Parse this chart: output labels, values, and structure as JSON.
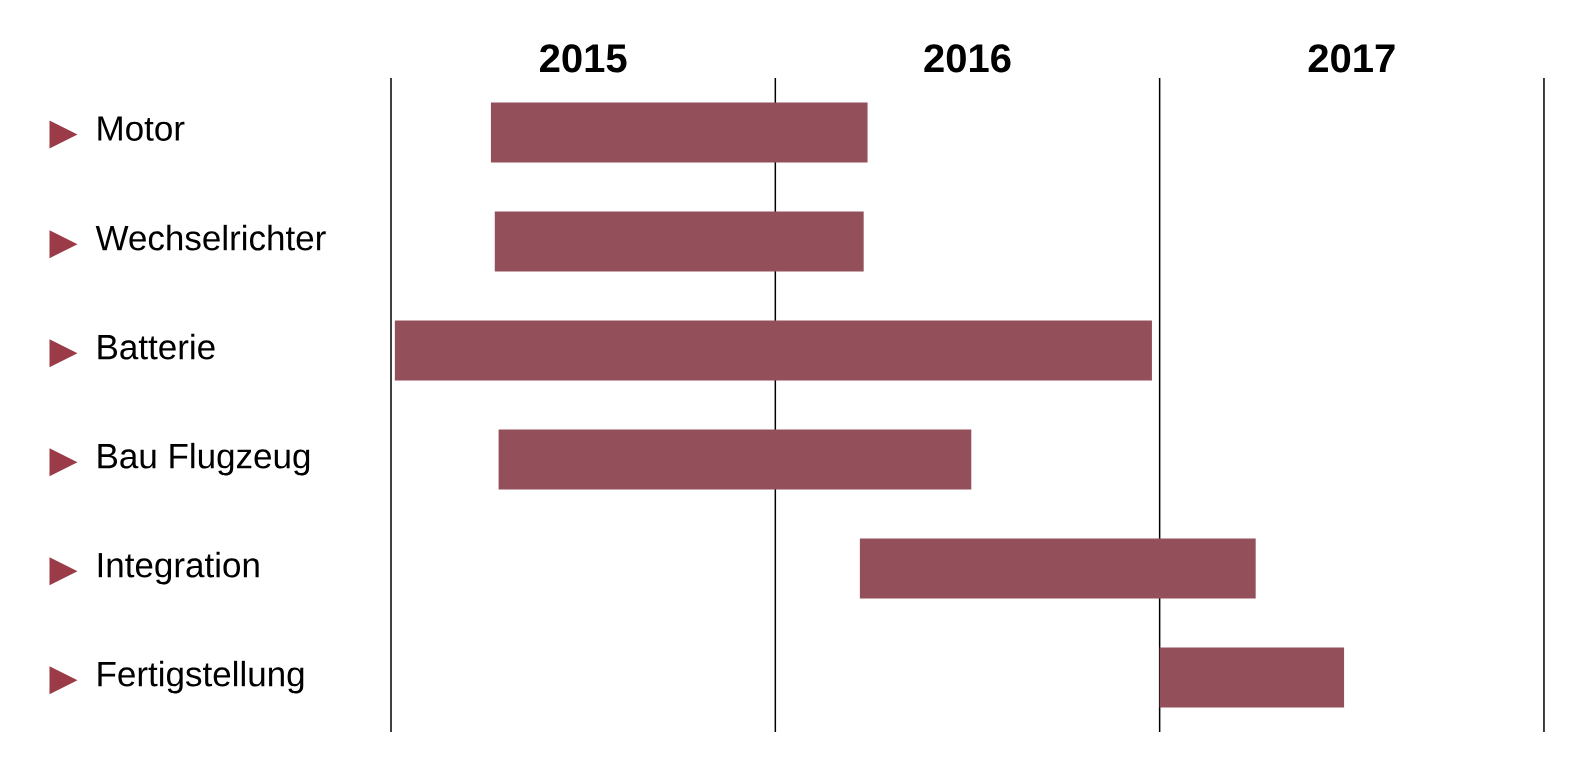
{
  "chart_data": {
    "type": "bar",
    "orientation": "horizontal",
    "categories": [
      "Motor",
      "Wechselrichter",
      "Batterie",
      "Bau Flugzeug",
      "Integration",
      "Fertigstellung"
    ],
    "base": [
      2015.26,
      2015.27,
      2015.01,
      2015.28,
      2016.22,
      2017.0
    ],
    "values": [
      0.98,
      0.96,
      1.97,
      1.23,
      1.03,
      0.48
    ],
    "color": "#93505a",
    "xlim": [
      2015,
      2018
    ],
    "xticks": [
      {
        "value": 2015.5,
        "label": "2015"
      },
      {
        "value": 2016.5,
        "label": "2016"
      },
      {
        "value": 2017.5,
        "label": "2017"
      }
    ],
    "ref_lines": [
      {
        "axis": "x",
        "value": 2015,
        "color": "#000000"
      },
      {
        "axis": "x",
        "value": 2016,
        "color": "#000000"
      },
      {
        "axis": "x",
        "value": 2017,
        "color": "#000000"
      },
      {
        "axis": "x",
        "value": 2018,
        "color": "#000000"
      }
    ]
  }
}
